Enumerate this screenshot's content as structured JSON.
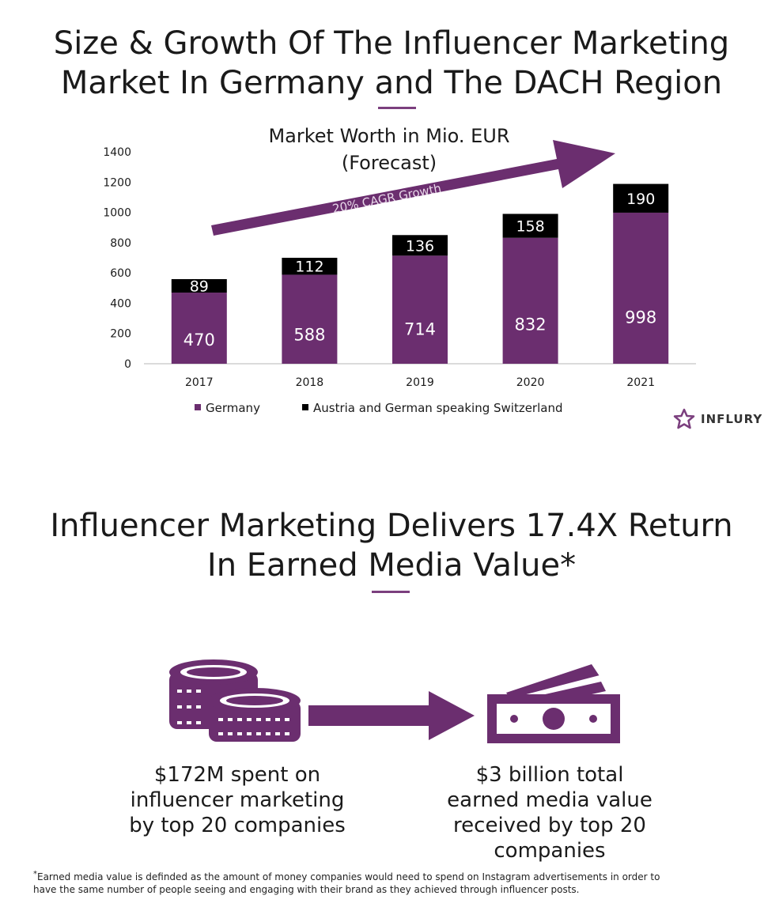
{
  "section1": {
    "title_line1": "Size & Growth Of The Influencer Marketing",
    "title_line2": "Market In Germany and The DACH Region"
  },
  "chart_data": {
    "type": "bar",
    "stacked": true,
    "title_line1": "Market Worth in Mio. EUR",
    "title_line2": "(Forecast)",
    "categories": [
      "2017",
      "2018",
      "2019",
      "2020",
      "2021"
    ],
    "series": [
      {
        "name": "Germany",
        "values": [
          470,
          588,
          714,
          832,
          998
        ],
        "color": "#6b2e6f"
      },
      {
        "name": "Austria and German speaking Switzerland",
        "values": [
          89,
          112,
          136,
          158,
          190
        ],
        "color": "#000000"
      }
    ],
    "yticks": [
      "0",
      "200",
      "400",
      "600",
      "800",
      "1000",
      "1200",
      "1400"
    ],
    "ylim": [
      0,
      1400
    ],
    "annotation": "20% CAGR Growth",
    "legend_position": "bottom",
    "grid": false
  },
  "brand": {
    "name": "INFLURY",
    "color": "#7b3f7e"
  },
  "section2": {
    "title_line1": "Influencer Marketing Delivers 17.4X Return",
    "title_line2": "In Earned Media Value*",
    "left_caption": [
      "$172M spent on",
      "influencer marketing",
      "by top 20 companies"
    ],
    "right_caption": [
      "$3 billion total",
      "earned media value",
      "received by top 20",
      "companies"
    ],
    "footnote_mark": "*",
    "footnote_text": "Earned media value is definded as the amount of money companies would need to spend on Instagram advertisements in order to have the same number of people seeing and engaging with their brand as they achieved through influencer posts."
  },
  "icons": {
    "coins": "coins-stack-icon",
    "arrow": "right-arrow-icon",
    "cash": "banknotes-icon",
    "accent": "#6b2e6f"
  }
}
